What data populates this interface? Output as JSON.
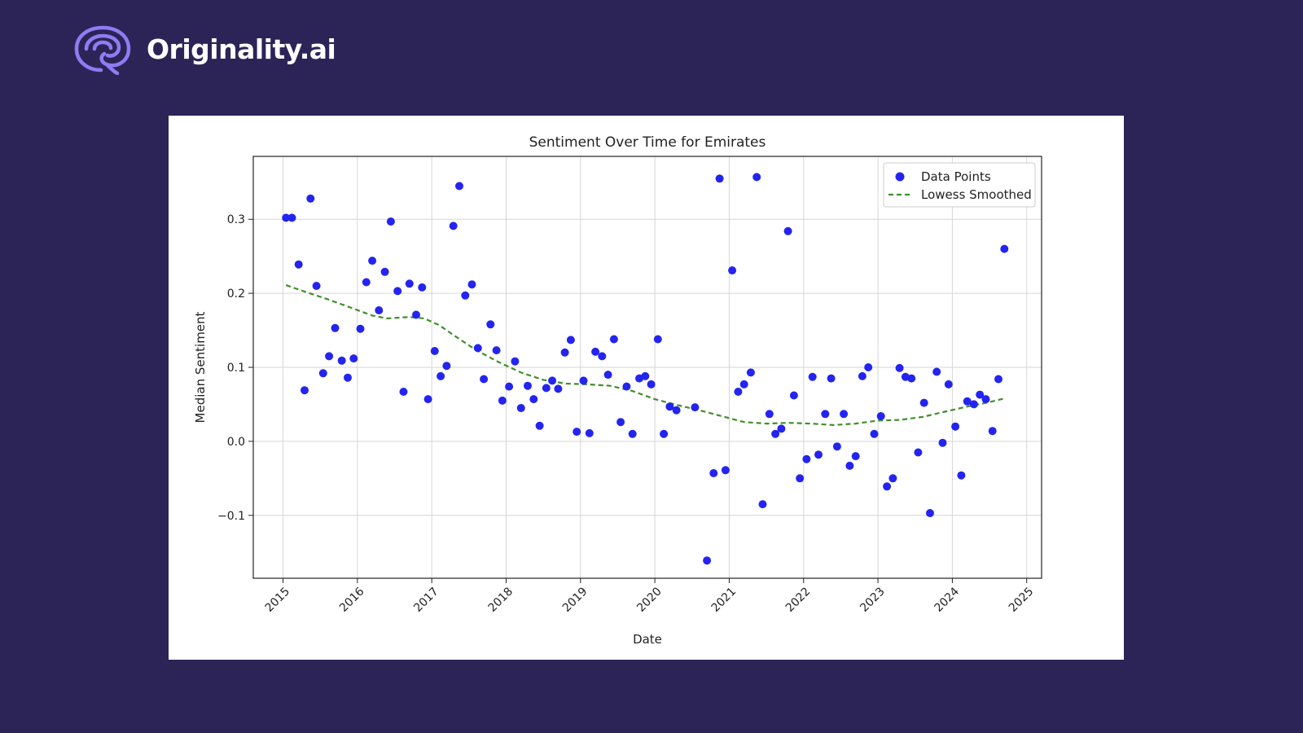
{
  "brand": {
    "name": "Originality.ai",
    "logo_icon": "brain-swirl-icon"
  },
  "colors": {
    "background": "#2c2457",
    "logo_accent": "#8f7cf2",
    "points": "#2424f0",
    "smooth_line": "#3f8f2a",
    "grid": "#d6d6d6"
  },
  "chart_data": {
    "type": "scatter",
    "title": "Sentiment Over Time for Emirates",
    "xlabel": "Date",
    "ylabel": "Median Sentiment",
    "xlim": [
      2014.6,
      2025.2
    ],
    "ylim": [
      -0.185,
      0.385
    ],
    "xticks": [
      2015,
      2016,
      2017,
      2018,
      2019,
      2020,
      2021,
      2022,
      2023,
      2024,
      2025
    ],
    "xtick_labels": [
      "2015",
      "2016",
      "2017",
      "2018",
      "2019",
      "2020",
      "2021",
      "2022",
      "2023",
      "2024",
      "2025"
    ],
    "yticks": [
      -0.1,
      0.0,
      0.1,
      0.2,
      0.3
    ],
    "ytick_labels": [
      "−0.1",
      "0.0",
      "0.1",
      "0.2",
      "0.3"
    ],
    "grid": true,
    "legend_position": "top-right",
    "series": [
      {
        "name": "Data Points",
        "kind": "scatter",
        "color": "#2424f0",
        "points": [
          [
            2015.04,
            0.302
          ],
          [
            2015.12,
            0.302
          ],
          [
            2015.21,
            0.239
          ],
          [
            2015.29,
            0.069
          ],
          [
            2015.37,
            0.328
          ],
          [
            2015.45,
            0.21
          ],
          [
            2015.54,
            0.092
          ],
          [
            2015.62,
            0.115
          ],
          [
            2015.7,
            0.153
          ],
          [
            2015.79,
            0.109
          ],
          [
            2015.87,
            0.086
          ],
          [
            2015.95,
            0.112
          ],
          [
            2016.04,
            0.152
          ],
          [
            2016.12,
            0.215
          ],
          [
            2016.2,
            0.244
          ],
          [
            2016.29,
            0.177
          ],
          [
            2016.37,
            0.229
          ],
          [
            2016.45,
            0.297
          ],
          [
            2016.54,
            0.203
          ],
          [
            2016.62,
            0.067
          ],
          [
            2016.7,
            0.213
          ],
          [
            2016.79,
            0.171
          ],
          [
            2016.87,
            0.208
          ],
          [
            2016.95,
            0.057
          ],
          [
            2017.04,
            0.122
          ],
          [
            2017.12,
            0.088
          ],
          [
            2017.2,
            0.102
          ],
          [
            2017.29,
            0.291
          ],
          [
            2017.37,
            0.345
          ],
          [
            2017.45,
            0.197
          ],
          [
            2017.54,
            0.212
          ],
          [
            2017.62,
            0.126
          ],
          [
            2017.7,
            0.084
          ],
          [
            2017.79,
            0.158
          ],
          [
            2017.87,
            0.123
          ],
          [
            2017.95,
            0.055
          ],
          [
            2018.04,
            0.074
          ],
          [
            2018.12,
            0.108
          ],
          [
            2018.2,
            0.045
          ],
          [
            2018.29,
            0.075
          ],
          [
            2018.37,
            0.057
          ],
          [
            2018.45,
            0.021
          ],
          [
            2018.54,
            0.072
          ],
          [
            2018.62,
            0.082
          ],
          [
            2018.7,
            0.071
          ],
          [
            2018.79,
            0.12
          ],
          [
            2018.87,
            0.137
          ],
          [
            2018.95,
            0.013
          ],
          [
            2019.04,
            0.082
          ],
          [
            2019.12,
            0.011
          ],
          [
            2019.2,
            0.121
          ],
          [
            2019.29,
            0.115
          ],
          [
            2019.37,
            0.09
          ],
          [
            2019.45,
            0.138
          ],
          [
            2019.54,
            0.026
          ],
          [
            2019.62,
            0.074
          ],
          [
            2019.7,
            0.01
          ],
          [
            2019.79,
            0.085
          ],
          [
            2019.87,
            0.088
          ],
          [
            2019.95,
            0.077
          ],
          [
            2020.04,
            0.138
          ],
          [
            2020.12,
            0.01
          ],
          [
            2020.2,
            0.047
          ],
          [
            2020.29,
            0.042
          ],
          [
            2020.54,
            0.046
          ],
          [
            2020.7,
            -0.161
          ],
          [
            2020.79,
            -0.043
          ],
          [
            2020.87,
            0.355
          ],
          [
            2020.95,
            -0.039
          ],
          [
            2021.04,
            0.231
          ],
          [
            2021.12,
            0.067
          ],
          [
            2021.2,
            0.077
          ],
          [
            2021.29,
            0.093
          ],
          [
            2021.37,
            0.357
          ],
          [
            2021.45,
            -0.085
          ],
          [
            2021.54,
            0.037
          ],
          [
            2021.62,
            0.01
          ],
          [
            2021.7,
            0.017
          ],
          [
            2021.79,
            0.284
          ],
          [
            2021.87,
            0.062
          ],
          [
            2021.95,
            -0.05
          ],
          [
            2022.04,
            -0.024
          ],
          [
            2022.12,
            0.087
          ],
          [
            2022.2,
            -0.018
          ],
          [
            2022.29,
            0.037
          ],
          [
            2022.37,
            0.085
          ],
          [
            2022.45,
            -0.007
          ],
          [
            2022.54,
            0.037
          ],
          [
            2022.62,
            -0.033
          ],
          [
            2022.7,
            -0.02
          ],
          [
            2022.79,
            0.088
          ],
          [
            2022.87,
            0.1
          ],
          [
            2022.95,
            0.01
          ],
          [
            2023.04,
            0.034
          ],
          [
            2023.12,
            -0.061
          ],
          [
            2023.2,
            -0.05
          ],
          [
            2023.29,
            0.099
          ],
          [
            2023.37,
            0.087
          ],
          [
            2023.45,
            0.085
          ],
          [
            2023.54,
            -0.015
          ],
          [
            2023.62,
            0.052
          ],
          [
            2023.7,
            -0.097
          ],
          [
            2023.79,
            0.094
          ],
          [
            2023.87,
            -0.002
          ],
          [
            2023.95,
            0.077
          ],
          [
            2024.04,
            0.02
          ],
          [
            2024.12,
            -0.046
          ],
          [
            2024.2,
            0.054
          ],
          [
            2024.29,
            0.05
          ],
          [
            2024.37,
            0.063
          ],
          [
            2024.45,
            0.057
          ],
          [
            2024.54,
            0.014
          ],
          [
            2024.62,
            0.084
          ],
          [
            2024.7,
            0.26
          ]
        ]
      },
      {
        "name": "Lowess Smoothed",
        "kind": "line",
        "style": "dashed",
        "color": "#3f8f2a",
        "points": [
          [
            2015.04,
            0.211
          ],
          [
            2015.3,
            0.202
          ],
          [
            2015.6,
            0.192
          ],
          [
            2015.9,
            0.181
          ],
          [
            2016.2,
            0.17
          ],
          [
            2016.4,
            0.166
          ],
          [
            2016.7,
            0.168
          ],
          [
            2016.9,
            0.166
          ],
          [
            2017.1,
            0.157
          ],
          [
            2017.3,
            0.143
          ],
          [
            2017.6,
            0.123
          ],
          [
            2017.9,
            0.107
          ],
          [
            2018.2,
            0.093
          ],
          [
            2018.5,
            0.083
          ],
          [
            2018.8,
            0.078
          ],
          [
            2019.1,
            0.077
          ],
          [
            2019.4,
            0.075
          ],
          [
            2019.7,
            0.068
          ],
          [
            2020.0,
            0.057
          ],
          [
            2020.3,
            0.049
          ],
          [
            2020.6,
            0.042
          ],
          [
            2020.9,
            0.034
          ],
          [
            2021.2,
            0.026
          ],
          [
            2021.5,
            0.024
          ],
          [
            2021.8,
            0.025
          ],
          [
            2022.1,
            0.024
          ],
          [
            2022.4,
            0.022
          ],
          [
            2022.7,
            0.024
          ],
          [
            2023.0,
            0.028
          ],
          [
            2023.3,
            0.029
          ],
          [
            2023.6,
            0.033
          ],
          [
            2023.9,
            0.04
          ],
          [
            2024.2,
            0.047
          ],
          [
            2024.5,
            0.053
          ],
          [
            2024.7,
            0.058
          ]
        ]
      }
    ]
  }
}
